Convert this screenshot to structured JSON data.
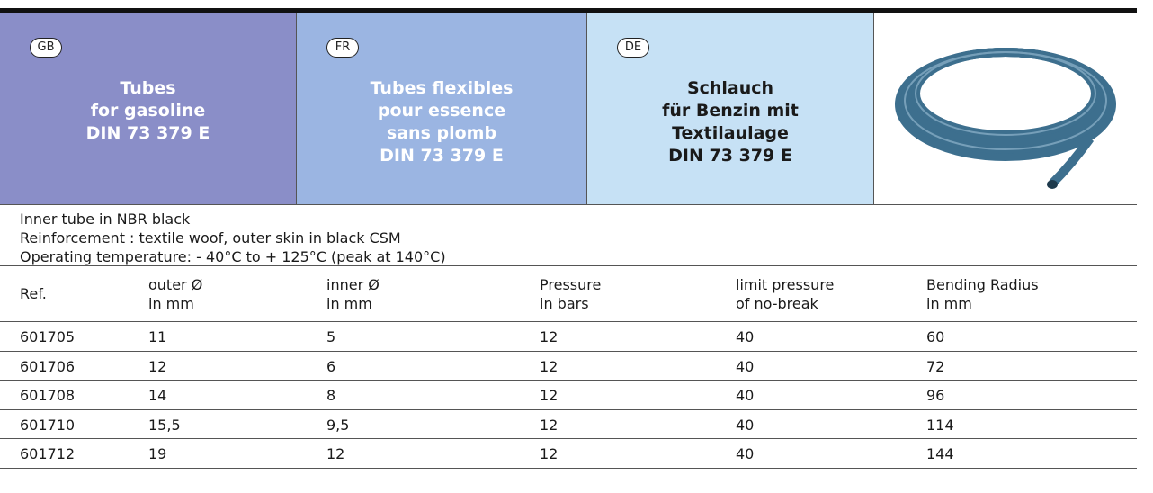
{
  "header": {
    "cells": [
      {
        "badge": "GB",
        "title": [
          "Tubes",
          "for gasoline",
          "DIN 73 379 E"
        ]
      },
      {
        "badge": "FR",
        "title": [
          "Tubes flexibles",
          "pour essence",
          "sans plomb",
          "DIN 73 379 E"
        ]
      },
      {
        "badge": "DE",
        "title": [
          "Schlauch",
          "für Benzin mit",
          "Textilaulage",
          "DIN 73 379 E"
        ]
      }
    ]
  },
  "description": [
    "Inner tube in NBR black",
    "Reinforcement : textile woof, outer skin in black CSM",
    "Operating temperature: - 40°C to + 125°C (peak at 140°C)"
  ],
  "table": {
    "columns": [
      [
        "Ref."
      ],
      [
        "outer Ø",
        "in mm"
      ],
      [
        "inner Ø",
        "in mm"
      ],
      [
        "Pressure",
        "in bars"
      ],
      [
        "limit pressure",
        "of no-break"
      ],
      [
        "Bending Radius",
        "in mm"
      ]
    ],
    "rows": [
      [
        "601705",
        "11",
        "5",
        "12",
        "40",
        "60"
      ],
      [
        "601706",
        "12",
        "6",
        "12",
        "40",
        "72"
      ],
      [
        "601708",
        "14",
        "8",
        "12",
        "40",
        "96"
      ],
      [
        "601710",
        "15,5",
        "9,5",
        "12",
        "40",
        "114"
      ],
      [
        "601712",
        "19",
        "12",
        "12",
        "40",
        "144"
      ]
    ]
  }
}
